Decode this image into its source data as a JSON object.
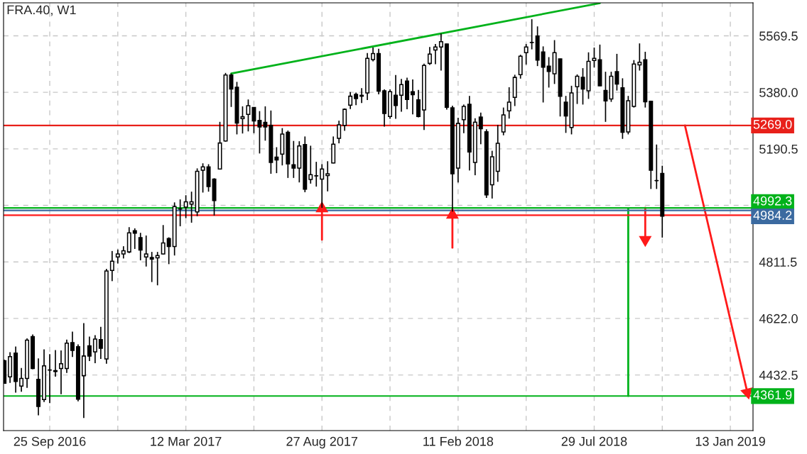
{
  "chart_data": {
    "type": "candlestick",
    "title": "FRA.40, W1",
    "x": [
      "2016-07-31",
      "2016-08-07",
      "2016-08-14",
      "2016-08-21",
      "2016-08-28",
      "2016-09-04",
      "2016-09-11",
      "2016-09-18",
      "2016-09-25",
      "2016-10-02",
      "2016-10-09",
      "2016-10-16",
      "2016-10-23",
      "2016-10-30",
      "2016-11-06",
      "2016-11-13",
      "2016-11-20",
      "2016-11-27",
      "2016-12-04",
      "2016-12-11",
      "2016-12-18",
      "2016-12-25",
      "2017-01-01",
      "2017-01-08",
      "2017-01-15",
      "2017-01-22",
      "2017-01-29",
      "2017-02-05",
      "2017-02-12",
      "2017-02-19",
      "2017-02-26",
      "2017-03-05",
      "2017-03-12",
      "2017-03-19",
      "2017-03-26",
      "2017-04-02",
      "2017-04-09",
      "2017-04-16",
      "2017-04-23",
      "2017-04-30",
      "2017-05-07",
      "2017-05-14",
      "2017-05-21",
      "2017-05-28",
      "2017-06-04",
      "2017-06-11",
      "2017-06-18",
      "2017-06-25",
      "2017-07-02",
      "2017-07-09",
      "2017-07-16",
      "2017-07-23",
      "2017-07-30",
      "2017-08-06",
      "2017-08-13",
      "2017-08-20",
      "2017-08-27",
      "2017-09-03",
      "2017-09-10",
      "2017-09-17",
      "2017-09-24",
      "2017-10-01",
      "2017-10-08",
      "2017-10-15",
      "2017-10-22",
      "2017-10-29",
      "2017-11-05",
      "2017-11-12",
      "2017-11-19",
      "2017-11-26",
      "2017-12-03",
      "2017-12-10",
      "2017-12-17",
      "2017-12-24",
      "2017-12-31",
      "2018-01-07",
      "2018-01-14",
      "2018-01-21",
      "2018-01-28",
      "2018-02-04",
      "2018-02-11",
      "2018-02-18",
      "2018-02-25",
      "2018-03-04",
      "2018-03-11",
      "2018-03-18",
      "2018-03-25",
      "2018-04-01",
      "2018-04-08",
      "2018-04-15",
      "2018-04-22",
      "2018-04-29",
      "2018-05-06",
      "2018-05-13",
      "2018-05-20",
      "2018-05-27",
      "2018-06-03",
      "2018-06-10",
      "2018-06-17",
      "2018-06-24",
      "2018-07-01",
      "2018-07-08",
      "2018-07-15",
      "2018-07-22",
      "2018-07-29",
      "2018-08-05",
      "2018-08-12",
      "2018-08-19",
      "2018-08-26",
      "2018-09-02",
      "2018-09-09",
      "2018-09-16",
      "2018-09-23",
      "2018-09-30",
      "2018-10-07",
      "2018-10-14",
      "2018-10-21"
    ],
    "ohlc": [
      [
        4480,
        4484,
        4403,
        4405
      ],
      [
        4426,
        4509,
        4406,
        4494
      ],
      [
        4506,
        4528,
        4373,
        4411
      ],
      [
        4395,
        4456,
        4376,
        4421
      ],
      [
        4421,
        4555,
        4389,
        4549
      ],
      [
        4561,
        4568,
        4452,
        4454
      ],
      [
        4418,
        4488,
        4297,
        4327
      ],
      [
        4350,
        4518,
        4342,
        4463
      ],
      [
        4449,
        4502,
        4338,
        4449
      ],
      [
        4447,
        4516,
        4427,
        4444
      ],
      [
        4454,
        4515,
        4368,
        4470
      ],
      [
        4454,
        4551,
        4439,
        4539
      ],
      [
        4541,
        4578,
        4493,
        4515
      ],
      [
        4527,
        4535,
        4344,
        4351
      ],
      [
        4430,
        4606,
        4288,
        4496
      ],
      [
        4530,
        4561,
        4479,
        4496
      ],
      [
        4510,
        4566,
        4472,
        4553
      ],
      [
        4551,
        4594,
        4486,
        4522
      ],
      [
        4486,
        4788,
        4470,
        4781
      ],
      [
        4783,
        4848,
        4747,
        4814
      ],
      [
        4828,
        4853,
        4806,
        4838
      ],
      [
        4838,
        4864,
        4823,
        4849
      ],
      [
        4845,
        4928,
        4841,
        4909
      ],
      [
        4916,
        4924,
        4855,
        4908
      ],
      [
        4893,
        4909,
        4817,
        4851
      ],
      [
        4828,
        4900,
        4796,
        4838
      ],
      [
        4826,
        4845,
        4744,
        4821
      ],
      [
        4825,
        4845,
        4733,
        4833
      ],
      [
        4838,
        4935,
        4837,
        4875
      ],
      [
        4890,
        4894,
        4804,
        4863
      ],
      [
        4863,
        5011,
        4833,
        4997
      ],
      [
        4989,
        5021,
        4931,
        4989
      ],
      [
        4995,
        5035,
        4958,
        5013
      ],
      [
        5005,
        5047,
        4943,
        5013
      ],
      [
        4979,
        5125,
        4965,
        5115
      ],
      [
        5119,
        5142,
        5044,
        5130
      ],
      [
        5130,
        5139,
        5047,
        5064
      ],
      [
        5089,
        5092,
        4967,
        5017
      ],
      [
        5123,
        5281,
        5122,
        5210
      ],
      [
        5217,
        5445,
        5215,
        5438
      ],
      [
        5438,
        5443,
        5331,
        5391
      ],
      [
        5397,
        5415,
        5239,
        5277
      ],
      [
        5292,
        5333,
        5242,
        5298
      ],
      [
        5306,
        5356,
        5249,
        5335
      ],
      [
        5329,
        5330,
        5243,
        5284
      ],
      [
        5286,
        5317,
        5175,
        5264
      ],
      [
        5279,
        5333,
        5218,
        5264
      ],
      [
        5269,
        5319,
        5107,
        5145
      ],
      [
        5163,
        5196,
        5109,
        5153
      ],
      [
        5173,
        5260,
        5135,
        5240
      ],
      [
        5246,
        5252,
        5093,
        5140
      ],
      [
        5137,
        5217,
        5093,
        5126
      ],
      [
        5126,
        5216,
        5078,
        5200
      ],
      [
        5205,
        5232,
        5045,
        5055
      ],
      [
        5088,
        5201,
        5074,
        5104
      ],
      [
        5100,
        5147,
        5064,
        5100
      ],
      [
        5089,
        5139,
        4993,
        5123
      ],
      [
        5101,
        5149,
        5048,
        5107
      ],
      [
        5143,
        5232,
        5142,
        5206
      ],
      [
        5226,
        5285,
        5209,
        5271
      ],
      [
        5269,
        5326,
        5251,
        5323
      ],
      [
        5337,
        5381,
        5324,
        5367
      ],
      [
        5373,
        5379,
        5337,
        5359
      ],
      [
        5370,
        5394,
        5344,
        5367
      ],
      [
        5378,
        5512,
        5354,
        5494
      ],
      [
        5490,
        5530,
        5484,
        5510
      ],
      [
        5510,
        5526,
        5373,
        5384
      ],
      [
        5385,
        5390,
        5265,
        5309
      ],
      [
        5299,
        5390,
        5291,
        5382
      ],
      [
        5370,
        5438,
        5291,
        5336
      ],
      [
        5370,
        5425,
        5315,
        5406
      ],
      [
        5418,
        5429,
        5323,
        5356
      ],
      [
        5382,
        5423,
        5306,
        5372
      ],
      [
        5355,
        5388,
        5296,
        5299
      ],
      [
        5321,
        5476,
        5254,
        5470
      ],
      [
        5477,
        5532,
        5472,
        5508
      ],
      [
        5522,
        5542,
        5474,
        5532
      ],
      [
        5532,
        5577,
        5453,
        5550
      ],
      [
        5542,
        5543,
        5322,
        5330
      ],
      [
        5328,
        5335,
        4980,
        5107
      ],
      [
        5126,
        5295,
        5078,
        5276
      ],
      [
        5288,
        5339,
        5243,
        5333
      ],
      [
        5340,
        5368,
        5118,
        5180
      ],
      [
        5145,
        5293,
        5102,
        5280
      ],
      [
        5297,
        5312,
        5206,
        5258
      ],
      [
        5248,
        5256,
        5026,
        5036
      ],
      [
        5070,
        5184,
        5024,
        5164
      ],
      [
        5115,
        5271,
        5080,
        5209
      ],
      [
        5247,
        5329,
        5236,
        5304
      ],
      [
        5318,
        5397,
        5292,
        5347
      ],
      [
        5363,
        5439,
        5334,
        5430
      ],
      [
        5439,
        5506,
        5426,
        5501
      ],
      [
        5513,
        5542,
        5473,
        5532
      ],
      [
        5547,
        5625,
        5524,
        5547
      ],
      [
        5569,
        5601,
        5468,
        5488
      ],
      [
        5515,
        5534,
        5346,
        5464
      ],
      [
        5468,
        5498,
        5396,
        5450
      ],
      [
        5442,
        5555,
        5408,
        5513
      ],
      [
        5492,
        5493,
        5299,
        5367
      ],
      [
        5347,
        5368,
        5244,
        5301
      ],
      [
        5262,
        5402,
        5239,
        5378
      ],
      [
        5399,
        5440,
        5341,
        5434
      ],
      [
        5430,
        5461,
        5339,
        5391
      ],
      [
        5385,
        5514,
        5358,
        5484
      ],
      [
        5487,
        5530,
        5463,
        5494
      ],
      [
        5489,
        5540,
        5401,
        5402
      ],
      [
        5386,
        5449,
        5281,
        5351
      ],
      [
        5358,
        5449,
        5348,
        5434
      ],
      [
        5449,
        5509,
        5386,
        5408
      ],
      [
        5395,
        5427,
        5224,
        5246
      ],
      [
        5247,
        5368,
        5239,
        5352
      ],
      [
        5333,
        5488,
        5329,
        5475
      ],
      [
        5472,
        5544,
        5453,
        5481
      ],
      [
        5489,
        5516,
        5329,
        5348
      ],
      [
        5350,
        5352,
        5056,
        5119
      ],
      [
        5084,
        5205,
        5056,
        5084
      ],
      [
        5108,
        5134,
        4893,
        4965
      ]
    ],
    "series": [
      {
        "type": "line",
        "color": "#00b21a",
        "x": [
          "2017-05-07",
          "2018-08-05"
        ],
        "values": [
          5443,
          5679
        ]
      },
      {
        "type": "line",
        "color": "#00b21a",
        "x": [
          "2018-09-09",
          "2018-09-09"
        ],
        "values": [
          4992,
          4362
        ]
      },
      {
        "type": "line",
        "marker": "triangle",
        "color": "#ff1a1a",
        "x": [
          "2017-08-27",
          "2017-08-27"
        ],
        "values": [
          4886,
          4990
        ]
      },
      {
        "type": "line",
        "marker": "triangle",
        "color": "#ff1a1a",
        "x": [
          "2018-02-04",
          "2018-02-04"
        ],
        "values": [
          4859,
          4969
        ]
      },
      {
        "type": "line",
        "marker": "triangle",
        "color": "#ff1a1a",
        "x": [
          "2018-09-30",
          "2018-09-30"
        ],
        "values": [
          4993,
          4886
        ]
      },
      {
        "type": "line",
        "marker": "triangle",
        "color": "#ff1a1a",
        "x": [
          "2018-11-18",
          "2019-02-03"
        ],
        "values": [
          5269,
          4374
        ]
      }
    ],
    "ref_lines": [
      {
        "axis": "y",
        "value": 5269.0,
        "label": "5269.0",
        "color": "#e8201a"
      },
      {
        "axis": "y",
        "value": 4992.3,
        "label": "4992.3",
        "color": "#00b21a"
      },
      {
        "axis": "y",
        "value": 4984.2,
        "label": "4984.2",
        "color": "#3b6aa0"
      },
      {
        "axis": "y",
        "value": 4968,
        "color": "#ff1a1a"
      },
      {
        "axis": "y",
        "value": 4361.9,
        "label": "4361.9",
        "color": "#00b21a"
      }
    ],
    "xlim": [
      "2016-07-30",
      "2019-02-10"
    ],
    "xticks": [
      {
        "value": "2016-09-25",
        "label": "25 Sep 2016"
      },
      {
        "value": "2016-12-18",
        "label": null
      },
      {
        "value": "2017-03-12",
        "label": "12 Mar 2017"
      },
      {
        "value": "2017-06-04",
        "label": null
      },
      {
        "value": "2017-08-27",
        "label": "27 Aug 2017"
      },
      {
        "value": "2017-11-19",
        "label": null
      },
      {
        "value": "2018-02-11",
        "label": "11 Feb 2018"
      },
      {
        "value": "2018-05-06",
        "label": null
      },
      {
        "value": "2018-07-29",
        "label": "29 Jul 2018"
      },
      {
        "value": "2018-10-21",
        "label": null
      },
      {
        "value": "2019-01-13",
        "label": "13 Jan 2019"
      }
    ],
    "ylim": [
      4246,
      5680
    ],
    "yticks": [
      {
        "value": 4432.5,
        "label": "4432.5"
      },
      {
        "value": 4622.0,
        "label": "4622.0"
      },
      {
        "value": 4811.5,
        "label": "4811.5"
      },
      {
        "value": 5001.0,
        "label": null
      },
      {
        "value": 5190.5,
        "label": "5190.5"
      },
      {
        "value": 5380.0,
        "label": "5380.0"
      },
      {
        "value": 5569.5,
        "label": "5569.5"
      }
    ],
    "grid": true
  }
}
